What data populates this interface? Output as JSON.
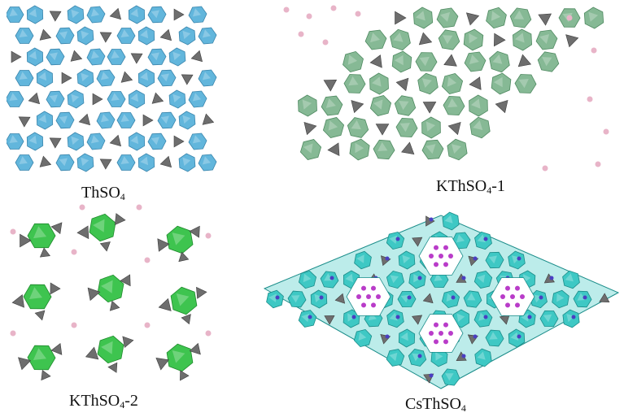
{
  "panels": [
    {
      "id": "thso4",
      "label_main": "ThSO",
      "label_sub": "4",
      "label_tail": "",
      "poly_color": "#62b6dc",
      "edge_color": "#3b86ad"
    },
    {
      "id": "kthso4-1",
      "label_main": "KThSO",
      "label_sub": "4",
      "label_tail": "-1",
      "poly_color": "#86b995",
      "edge_color": "#4f8a61"
    },
    {
      "id": "kthso4-2",
      "label_main": "KThSO",
      "label_sub": "4",
      "label_tail": "-2",
      "poly_color": "#3ec44f",
      "edge_color": "#1f8a2c"
    },
    {
      "id": "csthso4",
      "label_main": "CsThSO",
      "label_sub": "4",
      "label_tail": "",
      "poly_color": "#3ec8c4",
      "edge_color": "#1a8c89"
    }
  ],
  "colors": {
    "sulfate": "#6e6e6e",
    "sulfate_dark": "#3f3f3f",
    "k_atom": "#e8b4c8",
    "cs_atom": "#b93cc9",
    "o_atom": "#4a3fc2"
  }
}
